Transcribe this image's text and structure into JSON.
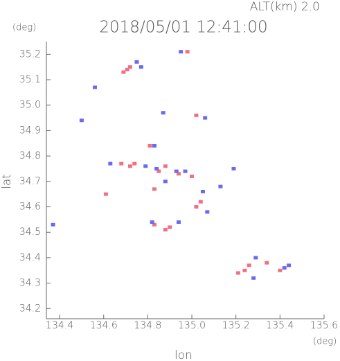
{
  "chart_data": {
    "type": "scatter",
    "title": "2018/05/01 12:41:00",
    "subtitle": "ALT(km) 2.0",
    "y_unit": "(deg)",
    "x_unit": "(deg)",
    "x_label": "lon",
    "y_label": "lat",
    "xlim": [
      134.34,
      135.6
    ],
    "ylim": [
      34.16,
      35.25
    ],
    "xticks": [
      134.4,
      134.6,
      134.8,
      {
        "value": 135,
        "label": "135.0"
      },
      135.2,
      135.4,
      135.6
    ],
    "yticks": [
      34.2,
      34.3,
      34.4,
      34.5,
      34.6,
      34.7,
      34.8,
      34.9,
      {
        "value": 35,
        "label": "35.0"
      },
      35.1,
      35.2
    ],
    "series": [
      {
        "color": "#f07084",
        "x": [
          134.707,
          134.69,
          134.72,
          134.98,
          135.02,
          134.81,
          134.74,
          134.68,
          134.72,
          134.88,
          134.85,
          134.94,
          134.83,
          134.61,
          135.04,
          135.02,
          134.83,
          134.9,
          134.88,
          135.21,
          135.24,
          135.26,
          135.34,
          135.4,
          135.0
        ],
        "values": [
          35.14,
          35.13,
          35.15,
          35.21,
          34.96,
          34.84,
          34.77,
          34.77,
          34.76,
          34.76,
          34.74,
          34.73,
          34.67,
          34.65,
          34.62,
          34.6,
          34.53,
          34.52,
          34.51,
          34.34,
          34.35,
          34.37,
          34.38,
          34.35,
          34.72
        ]
      },
      {
        "color": "#6a6af0",
        "x": [
          134.37,
          134.56,
          134.75,
          134.95,
          135.06,
          134.87,
          134.5,
          134.83,
          134.63,
          134.79,
          134.84,
          134.93,
          134.97,
          134.88,
          135.05,
          135.07,
          134.94,
          134.82,
          135.19,
          135.29,
          135.44,
          135.42,
          135.28,
          134.77,
          135.13
        ],
        "values": [
          34.53,
          35.07,
          35.17,
          35.21,
          34.95,
          34.97,
          34.94,
          34.84,
          34.77,
          34.76,
          34.75,
          34.74,
          34.74,
          34.7,
          34.66,
          34.58,
          34.54,
          34.54,
          34.75,
          34.4,
          34.37,
          34.36,
          34.32,
          35.15,
          34.68
        ]
      }
    ]
  }
}
